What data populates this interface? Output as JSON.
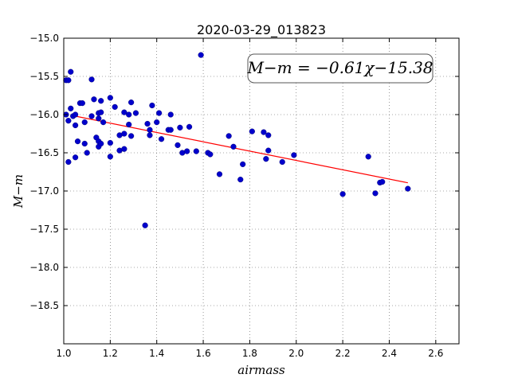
{
  "chart_data": {
    "type": "scatter",
    "title": "2020-03-29_013823",
    "xlabel": "airmass",
    "ylabel": "M−m",
    "xlim": [
      1.0,
      2.7
    ],
    "ylim": [
      -19.0,
      -15.0
    ],
    "y_inverted": false,
    "grid": true,
    "x_ticks": [
      "1.0",
      "1.2",
      "1.4",
      "1.6",
      "1.8",
      "2.0",
      "2.2",
      "2.4",
      "2.6"
    ],
    "y_ticks": [
      "−15.0",
      "−15.5",
      "−16.0",
      "−16.5",
      "−17.0",
      "−17.5",
      "−18.0",
      "−18.5"
    ],
    "annotation": "M−m = −0.61χ−15.38",
    "fit": {
      "slope": -0.61,
      "intercept": -15.38,
      "x_range": [
        1.04,
        2.48
      ],
      "color": "#ff0000"
    },
    "point_color": "#0000cc",
    "points": [
      [
        1.01,
        -15.55
      ],
      [
        1.02,
        -15.55
      ],
      [
        1.03,
        -15.44
      ],
      [
        1.01,
        -16.0
      ],
      [
        1.02,
        -16.08
      ],
      [
        1.03,
        -15.92
      ],
      [
        1.04,
        -16.02
      ],
      [
        1.05,
        -16.0
      ],
      [
        1.05,
        -16.14
      ],
      [
        1.06,
        -16.35
      ],
      [
        1.05,
        -16.56
      ],
      [
        1.02,
        -16.62
      ],
      [
        1.07,
        -15.85
      ],
      [
        1.08,
        -15.85
      ],
      [
        1.09,
        -16.1
      ],
      [
        1.09,
        -16.38
      ],
      [
        1.1,
        -16.5
      ],
      [
        1.12,
        -15.54
      ],
      [
        1.12,
        -16.02
      ],
      [
        1.13,
        -15.8
      ],
      [
        1.14,
        -16.3
      ],
      [
        1.15,
        -16.05
      ],
      [
        1.15,
        -15.98
      ],
      [
        1.16,
        -15.97
      ],
      [
        1.16,
        -15.82
      ],
      [
        1.15,
        -16.35
      ],
      [
        1.15,
        -16.42
      ],
      [
        1.16,
        -16.38
      ],
      [
        1.17,
        -16.1
      ],
      [
        1.2,
        -15.78
      ],
      [
        1.2,
        -16.37
      ],
      [
        1.2,
        -16.55
      ],
      [
        1.22,
        -15.9
      ],
      [
        1.24,
        -16.47
      ],
      [
        1.24,
        -16.27
      ],
      [
        1.26,
        -15.97
      ],
      [
        1.26,
        -16.25
      ],
      [
        1.26,
        -16.45
      ],
      [
        1.28,
        -16.0
      ],
      [
        1.28,
        -16.13
      ],
      [
        1.29,
        -15.84
      ],
      [
        1.29,
        -16.28
      ],
      [
        1.31,
        -15.98
      ],
      [
        1.35,
        -17.45
      ],
      [
        1.36,
        -16.12
      ],
      [
        1.37,
        -16.2
      ],
      [
        1.37,
        -16.27
      ],
      [
        1.38,
        -15.88
      ],
      [
        1.4,
        -16.1
      ],
      [
        1.41,
        -15.98
      ],
      [
        1.42,
        -16.32
      ],
      [
        1.45,
        -16.2
      ],
      [
        1.46,
        -16.2
      ],
      [
        1.46,
        -16.0
      ],
      [
        1.49,
        -16.4
      ],
      [
        1.5,
        -16.17
      ],
      [
        1.51,
        -16.5
      ],
      [
        1.53,
        -16.48
      ],
      [
        1.54,
        -16.16
      ],
      [
        1.57,
        -16.48
      ],
      [
        1.59,
        -15.22
      ],
      [
        1.62,
        -16.5
      ],
      [
        1.63,
        -16.52
      ],
      [
        1.67,
        -16.78
      ],
      [
        1.71,
        -16.28
      ],
      [
        1.73,
        -16.42
      ],
      [
        1.76,
        -16.85
      ],
      [
        1.77,
        -16.65
      ],
      [
        1.81,
        -16.22
      ],
      [
        1.86,
        -16.23
      ],
      [
        1.87,
        -16.58
      ],
      [
        1.88,
        -16.27
      ],
      [
        1.88,
        -16.47
      ],
      [
        1.94,
        -16.62
      ],
      [
        1.99,
        -16.53
      ],
      [
        2.2,
        -17.04
      ],
      [
        2.31,
        -16.55
      ],
      [
        2.34,
        -17.03
      ],
      [
        2.36,
        -16.89
      ],
      [
        2.37,
        -16.88
      ],
      [
        2.48,
        -16.97
      ]
    ]
  }
}
